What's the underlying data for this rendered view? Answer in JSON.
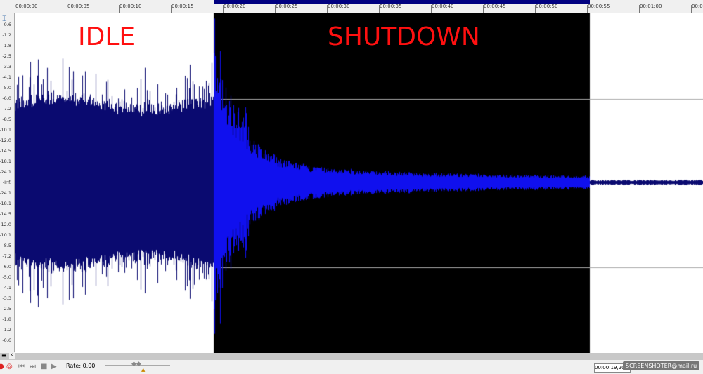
{
  "ruler": {
    "ticks": [
      "00:00:00",
      "00:00:05",
      "00:00:10",
      "00:00:15",
      "00:00:20",
      "00:00:25",
      "00:00:30",
      "00:00:35",
      "00:00:40",
      "00:00:45",
      "00:00:50",
      "00:00:55",
      "00:01:00",
      "00:01:0"
    ]
  },
  "db_scale": [
    "-0.6",
    "-1.2",
    "-1.8",
    "-2.5",
    "-3.3",
    "-4.1",
    "-5.0",
    "-6.0",
    "-7.2",
    "-8.5",
    "-10.1",
    "-12.0",
    "-14.5",
    "-18.1",
    "-24.1",
    "-Inf.",
    "-24.1",
    "-18.1",
    "-14.5",
    "-12.0",
    "-10.1",
    "-8.5",
    "-7.2",
    "-6.0",
    "-5.0",
    "-4.1",
    "-3.3",
    "-2.5",
    "-1.8",
    "-1.2",
    "-0.6"
  ],
  "annotations": {
    "idle": "IDLE",
    "shutdown": "SHUTDOWN"
  },
  "transport": {
    "rate_label": "Rate: 0,00",
    "position": "00:00:19,20"
  },
  "watermark": "SCREENSHOTER@mail.ru",
  "colors": {
    "waveform": "#0a0a70",
    "selected_waveform": "#1010ee",
    "selection_bg": "#000000",
    "annotation": "#ff1010"
  }
}
